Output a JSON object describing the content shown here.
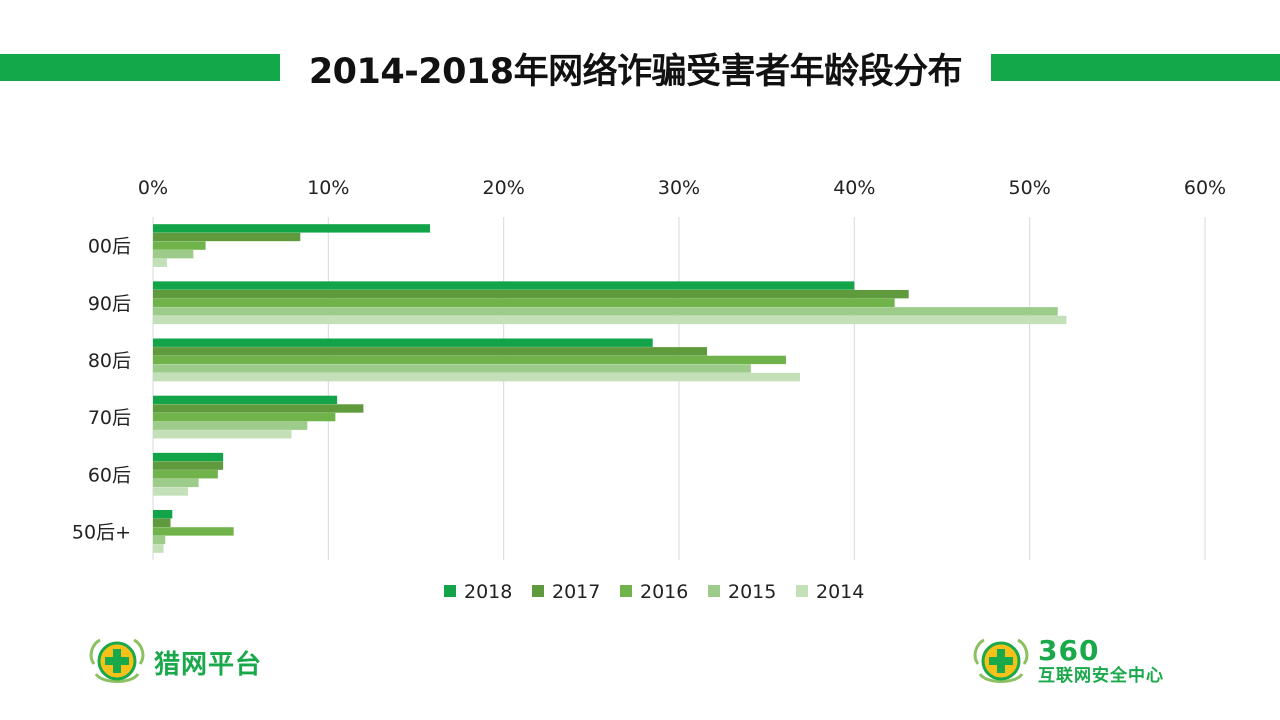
{
  "title": "2014-2018年网络诈骗受害者年龄段分布",
  "colors": {
    "accent": "#13a84a"
  },
  "chart_data": {
    "type": "bar",
    "orientation": "horizontal",
    "title": "2014-2018年网络诈骗受害者年龄段分布",
    "categories": [
      "00后",
      "90后",
      "80后",
      "70后",
      "60后",
      "50后+"
    ],
    "xlim": [
      0,
      60
    ],
    "x_ticks": [
      "0%",
      "10%",
      "20%",
      "30%",
      "40%",
      "50%",
      "60%"
    ],
    "grid": true,
    "legend_position": "bottom",
    "series": [
      {
        "name": "2018",
        "color": "#13a44a",
        "values": [
          15.8,
          40.0,
          28.5,
          10.5,
          4.0,
          1.1
        ]
      },
      {
        "name": "2017",
        "color": "#5f9a3c",
        "values": [
          8.4,
          43.1,
          31.6,
          12.0,
          4.0,
          1.0
        ]
      },
      {
        "name": "2016",
        "color": "#6fb34a",
        "values": [
          3.0,
          42.3,
          36.1,
          10.4,
          3.7,
          4.6
        ]
      },
      {
        "name": "2015",
        "color": "#9ccb8a",
        "values": [
          2.3,
          51.6,
          34.1,
          8.8,
          2.6,
          0.7
        ]
      },
      {
        "name": "2014",
        "color": "#c4e0b8",
        "values": [
          0.8,
          52.1,
          36.9,
          7.9,
          2.0,
          0.6
        ]
      }
    ]
  },
  "logos": {
    "left": "猎网平台",
    "right_number": "360",
    "right_sub": "互联网安全中心"
  }
}
